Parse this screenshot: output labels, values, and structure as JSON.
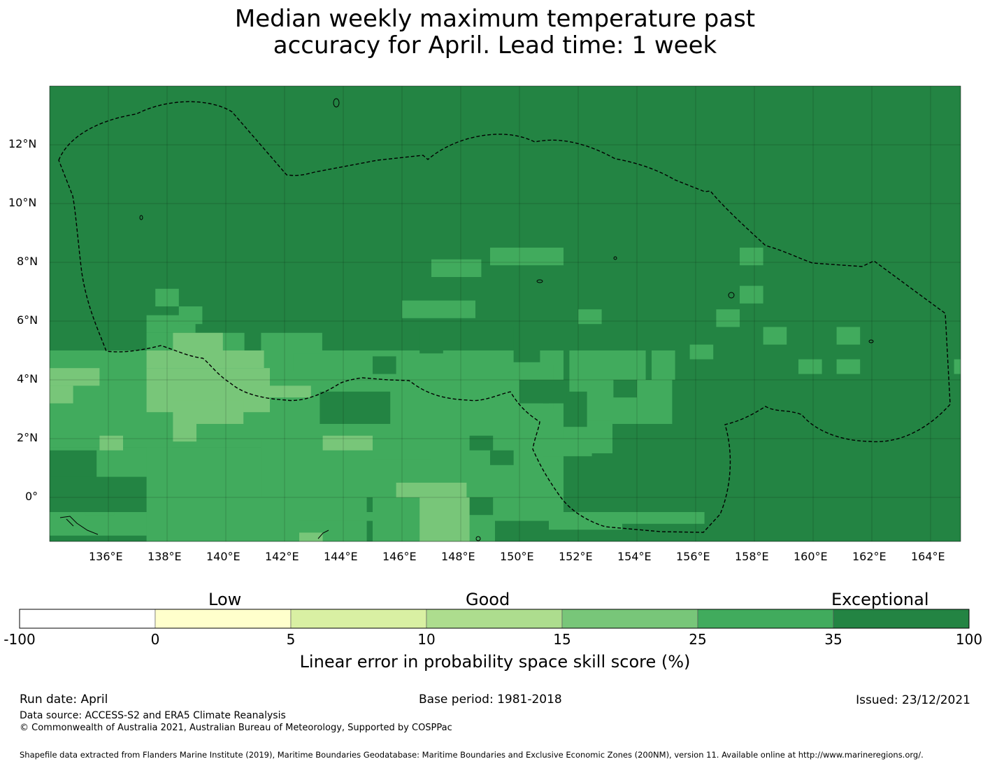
{
  "title": {
    "line1": "Median weekly maximum temperature past",
    "line2": "accuracy for April. Lead time: 1 week"
  },
  "map": {
    "lon_labels": [
      "136°E",
      "138°E",
      "140°E",
      "142°E",
      "144°E",
      "146°E",
      "148°E",
      "150°E",
      "152°E",
      "154°E",
      "156°E",
      "158°E",
      "160°E",
      "162°E",
      "164°E"
    ],
    "lat_labels": [
      "12°N",
      "10°N",
      "8°N",
      "6°N",
      "4°N",
      "2°N",
      "0°"
    ],
    "lon_range": [
      134.0,
      165.0
    ],
    "lat_range": [
      -1.5,
      14.0
    ],
    "colors": {
      "cat0": "#ffffff",
      "cat1": "#ffffcc",
      "cat2": "#d9f0a3",
      "cat3": "#addd8e",
      "cat4": "#78c679",
      "cat5": "#41ab5d",
      "cat6": "#238443"
    },
    "boundary_color": "#000000"
  },
  "colorbar": {
    "quality_words": [
      "Low",
      "Good",
      "Exceptional"
    ],
    "tick_labels": [
      "-100",
      "0",
      "5",
      "10",
      "15",
      "25",
      "35",
      "100"
    ],
    "label": "Linear error in probability space skill score (%)",
    "colors": [
      "#ffffff",
      "#ffffcc",
      "#d9f0a3",
      "#addd8e",
      "#78c679",
      "#41ab5d",
      "#238443"
    ]
  },
  "footer": {
    "run_date": "Run date: April",
    "base_period": "Base period: 1981-2018",
    "issued": "Issued: 23/12/2021",
    "data_source": "Data source: ACCESS-S2 and ERA5 Climate Reanalysis",
    "copyright": "© Commonwealth of Australia 2021, Australian Bureau of Meteorology, Supported by COSPPac",
    "shapefile": "Shapefile data extracted from Flanders Marine Institute (2019), Maritime Boundaries Geodatabase: Maritime Boundaries and Exclusive Economic Zones (200NM), version 11. Available online at http://www.marineregions.org/."
  }
}
